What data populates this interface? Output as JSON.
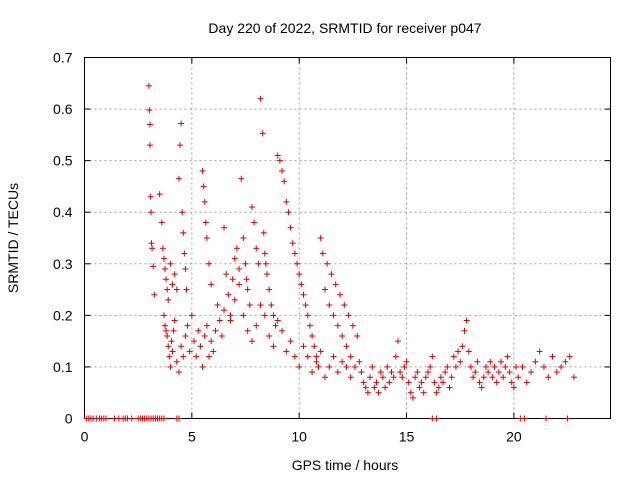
{
  "chart_data": {
    "type": "scatter",
    "title": "Day 220 of 2022, SRMTID for receiver p047",
    "xlabel": "GPS time / hours",
    "ylabel": "SRMTID / TECUs",
    "xlim": [
      0,
      24.5
    ],
    "ylim": [
      0,
      0.7
    ],
    "xticks": [
      0,
      5,
      10,
      15,
      20
    ],
    "xtick_labels": [
      "0",
      "5",
      "10",
      "15",
      "20"
    ],
    "yticks": [
      0,
      0.1,
      0.2,
      0.3,
      0.4,
      0.5,
      0.6,
      0.7
    ],
    "ytick_labels": [
      "0",
      "0.1",
      "0.2",
      "0.3",
      "0.4",
      "0.5",
      "0.6",
      "0.7"
    ],
    "grid": true,
    "marker": "+",
    "color": "#e00000",
    "series": [
      {
        "name": "p047",
        "x": [
          0.1,
          0.2,
          0.3,
          0.4,
          0.55,
          0.7,
          0.8,
          0.9,
          1.0,
          1.4,
          1.6,
          1.8,
          1.9,
          2.0,
          2.2,
          2.5,
          2.6,
          2.7,
          2.8,
          2.9,
          3.0,
          3.1,
          3.2,
          3.3,
          3.4,
          3.5,
          3.6,
          3.7,
          4.3,
          4.4,
          3.0,
          3.02,
          3.05,
          3.05,
          3.08,
          3.1,
          3.12,
          3.15,
          3.2,
          3.25,
          3.5,
          3.6,
          3.65,
          3.7,
          3.75,
          3.8,
          3.85,
          3.9,
          4.0,
          4.1,
          4.2,
          4.3,
          4.4,
          4.45,
          4.5,
          4.55,
          4.6,
          4.65,
          4.7,
          4.75,
          3.7,
          3.75,
          3.8,
          3.85,
          3.9,
          3.95,
          4.0,
          4.05,
          4.1,
          4.15,
          4.2,
          4.3,
          4.4,
          4.5,
          4.6,
          4.7,
          4.8,
          4.9,
          5.0,
          5.1,
          5.2,
          5.3,
          5.4,
          5.5,
          5.6,
          5.7,
          5.8,
          5.9,
          6.0,
          6.1,
          5.5,
          5.55,
          5.6,
          5.65,
          5.7,
          5.8,
          5.9,
          6.2,
          6.3,
          6.4,
          6.5,
          6.6,
          6.7,
          6.8,
          6.9,
          7.0,
          7.1,
          7.2,
          7.3,
          7.4,
          7.5,
          7.55,
          7.6,
          7.7,
          7.8,
          7.9,
          8.0,
          8.1,
          8.2,
          8.3,
          8.35,
          8.4,
          8.45,
          8.5,
          8.6,
          8.7,
          8.8,
          8.9,
          9.0,
          9.1,
          9.2,
          9.3,
          9.4,
          9.5,
          9.6,
          9.7,
          9.8,
          9.9,
          10.0,
          10.1,
          10.2,
          10.3,
          10.4,
          10.5,
          10.6,
          10.7,
          10.8,
          10.9,
          11.0,
          11.1,
          6.5,
          6.8,
          7.0,
          7.2,
          7.4,
          7.6,
          7.8,
          8.0,
          8.2,
          8.4,
          8.6,
          8.8,
          9.0,
          9.2,
          9.4,
          9.6,
          9.8,
          10.0,
          10.2,
          10.4,
          10.6,
          10.8,
          11.0,
          11.2,
          11.4,
          11.6,
          11.8,
          12.0,
          12.2,
          12.4,
          11.2,
          11.4,
          11.6,
          11.8,
          12.0,
          12.2,
          12.4,
          12.6,
          11.3,
          11.5,
          11.7,
          11.9,
          12.1,
          12.3,
          12.5,
          12.7,
          12.8,
          12.9,
          13.0,
          13.1,
          13.2,
          13.3,
          13.4,
          13.5,
          13.6,
          13.7,
          13.8,
          13.9,
          14.0,
          14.1,
          14.2,
          14.3,
          14.4,
          14.5,
          14.6,
          14.7,
          14.8,
          14.9,
          15.0,
          15.1,
          15.2,
          15.3,
          15.4,
          15.5,
          15.6,
          15.7,
          15.8,
          15.9,
          16.0,
          16.1,
          16.2,
          16.3,
          16.4,
          16.5,
          16.6,
          16.7,
          16.8,
          16.9,
          17.0,
          17.1,
          17.2,
          17.3,
          17.4,
          17.5,
          17.6,
          17.7,
          17.8,
          17.9,
          18.0,
          18.1,
          18.2,
          18.3,
          18.4,
          18.5,
          18.6,
          18.7,
          18.8,
          18.9,
          19.0,
          19.1,
          19.2,
          19.3,
          19.4,
          19.5,
          19.6,
          19.7,
          19.8,
          19.9,
          20.0,
          20.1,
          20.2,
          20.4,
          20.6,
          20.8,
          21.0,
          21.2,
          21.4,
          21.6,
          21.8,
          22.0,
          22.2,
          22.4,
          22.6,
          22.8,
          16.2,
          16.4,
          20.3,
          20.5,
          21.5,
          22.5
        ],
        "y": [
          0,
          0,
          0,
          0,
          0,
          0,
          0,
          0,
          0,
          0,
          0,
          0,
          0,
          0,
          0,
          0,
          0,
          0,
          0,
          0,
          0,
          0,
          0,
          0,
          0,
          0,
          0,
          0,
          0,
          0,
          0.645,
          0.598,
          0.57,
          0.53,
          0.43,
          0.4,
          0.34,
          0.33,
          0.295,
          0.24,
          0.435,
          0.38,
          0.33,
          0.31,
          0.29,
          0.27,
          0.25,
          0.23,
          0.3,
          0.26,
          0.28,
          0.25,
          0.465,
          0.53,
          0.572,
          0.4,
          0.36,
          0.32,
          0.29,
          0.25,
          0.2,
          0.18,
          0.17,
          0.16,
          0.14,
          0.12,
          0.1,
          0.15,
          0.13,
          0.17,
          0.19,
          0.11,
          0.09,
          0.14,
          0.12,
          0.16,
          0.18,
          0.13,
          0.2,
          0.15,
          0.12,
          0.17,
          0.14,
          0.1,
          0.16,
          0.18,
          0.12,
          0.15,
          0.13,
          0.17,
          0.48,
          0.45,
          0.42,
          0.38,
          0.35,
          0.3,
          0.26,
          0.22,
          0.19,
          0.16,
          0.37,
          0.28,
          0.24,
          0.2,
          0.27,
          0.31,
          0.33,
          0.29,
          0.465,
          0.35,
          0.3,
          0.27,
          0.25,
          0.22,
          0.41,
          0.38,
          0.33,
          0.3,
          0.62,
          0.553,
          0.36,
          0.32,
          0.3,
          0.28,
          0.25,
          0.22,
          0.2,
          0.18,
          0.51,
          0.5,
          0.48,
          0.46,
          0.42,
          0.4,
          0.37,
          0.34,
          0.32,
          0.3,
          0.28,
          0.26,
          0.24,
          0.22,
          0.2,
          0.18,
          0.16,
          0.14,
          0.12,
          0.1,
          0.35,
          0.32,
          0.21,
          0.19,
          0.23,
          0.26,
          0.2,
          0.17,
          0.15,
          0.18,
          0.22,
          0.2,
          0.16,
          0.14,
          0.19,
          0.17,
          0.13,
          0.15,
          0.12,
          0.1,
          0.14,
          0.12,
          0.09,
          0.11,
          0.13,
          0.08,
          0.1,
          0.12,
          0.09,
          0.11,
          0.1,
          0.08,
          0.25,
          0.22,
          0.2,
          0.18,
          0.16,
          0.14,
          0.12,
          0.1,
          0.3,
          0.28,
          0.26,
          0.24,
          0.22,
          0.2,
          0.18,
          0.16,
          0.11,
          0.09,
          0.07,
          0.06,
          0.05,
          0.08,
          0.1,
          0.06,
          0.07,
          0.05,
          0.09,
          0.08,
          0.06,
          0.1,
          0.07,
          0.09,
          0.08,
          0.12,
          0.15,
          0.09,
          0.08,
          0.1,
          0.11,
          0.07,
          0.05,
          0.04,
          0.08,
          0.09,
          0.06,
          0.07,
          0.05,
          0.08,
          0.09,
          0.1,
          0.12,
          0.07,
          0.05,
          0.06,
          0.08,
          0.07,
          0.09,
          0.1,
          0.06,
          0.08,
          0.12,
          0.1,
          0.13,
          0.11,
          0.14,
          0.17,
          0.19,
          0.13,
          0.1,
          0.08,
          0.09,
          0.11,
          0.07,
          0.06,
          0.08,
          0.1,
          0.09,
          0.11,
          0.08,
          0.1,
          0.07,
          0.09,
          0.11,
          0.08,
          0.1,
          0.12,
          0.09,
          0.07,
          0.06,
          0.1,
          0.08,
          0.1,
          0.07,
          0.09,
          0.11,
          0.13,
          0.1,
          0.08,
          0.12,
          0.09,
          0.1,
          0.11,
          0.12,
          0.08,
          0,
          0,
          0,
          0,
          0,
          0
        ]
      }
    ]
  }
}
